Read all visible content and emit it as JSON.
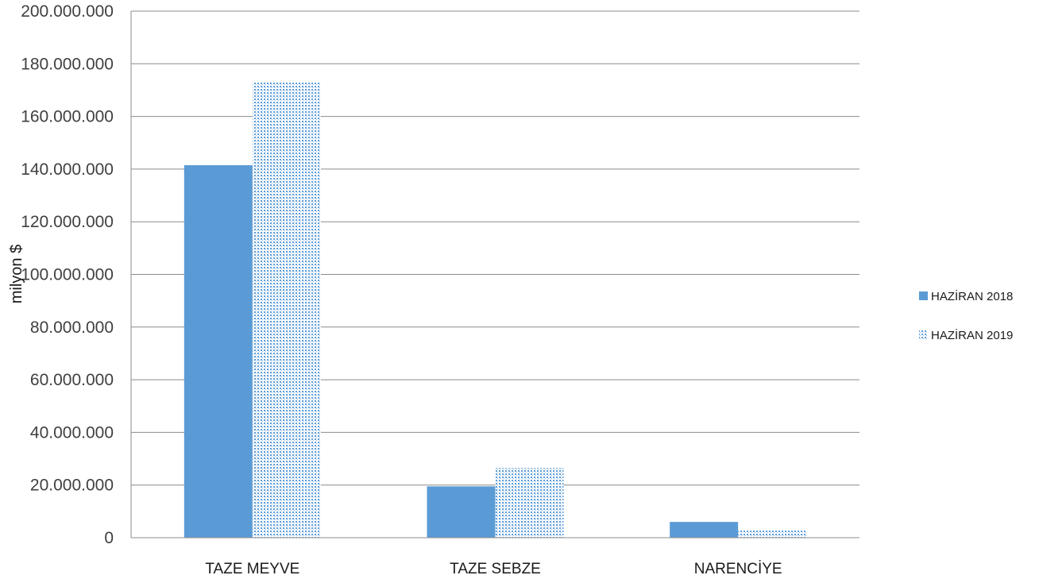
{
  "chart_data": {
    "type": "bar",
    "ylabel": "milyon $",
    "categories": [
      "TAZE MEYVE",
      "TAZE SEBZE",
      "NARENCİYE"
    ],
    "series": [
      {
        "name": "HAZİRAN 2018",
        "values": [
          141500000,
          19500000,
          6000000
        ],
        "color": "#5b9bd5",
        "pattern": "solid"
      },
      {
        "name": "HAZİRAN 2019",
        "values": [
          173000000,
          26500000,
          3000000
        ],
        "color": "#5b9bd5",
        "pattern": "dotted"
      }
    ],
    "ylim": [
      0,
      200000000
    ],
    "yticks": [
      0,
      20000000,
      40000000,
      60000000,
      80000000,
      100000000,
      120000000,
      140000000,
      160000000,
      180000000,
      200000000
    ],
    "ytick_labels": [
      "0",
      "20.000.000",
      "40.000.000",
      "60.000.000",
      "80.000.000",
      "100.000.000",
      "120.000.000",
      "140.000.000",
      "160.000.000",
      "180.000.000",
      "200.000.000"
    ],
    "grid": true,
    "legend_position": "right"
  }
}
